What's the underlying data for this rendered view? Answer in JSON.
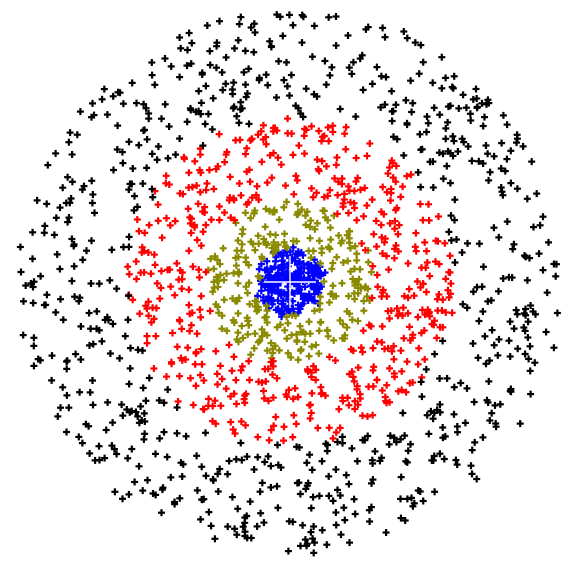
{
  "chart_data": {
    "type": "scatter",
    "title": "",
    "xlabel": "",
    "ylabel": "",
    "marker": "plus",
    "grid": false,
    "legend": "none",
    "center": [
      0,
      0
    ],
    "series": [
      {
        "color": "#0000ff",
        "ring": [
          0,
          0.12
        ],
        "count": 240,
        "seed": 11
      },
      {
        "color": "#8a8a00",
        "ring": [
          0.12,
          0.3
        ],
        "count": 260,
        "seed": 23
      },
      {
        "color": "#ff0000",
        "ring": [
          0.3,
          0.6
        ],
        "count": 520,
        "seed": 37
      },
      {
        "color": "#000000",
        "ring": [
          0.6,
          1.0
        ],
        "count": 720,
        "seed": 53
      }
    ]
  }
}
